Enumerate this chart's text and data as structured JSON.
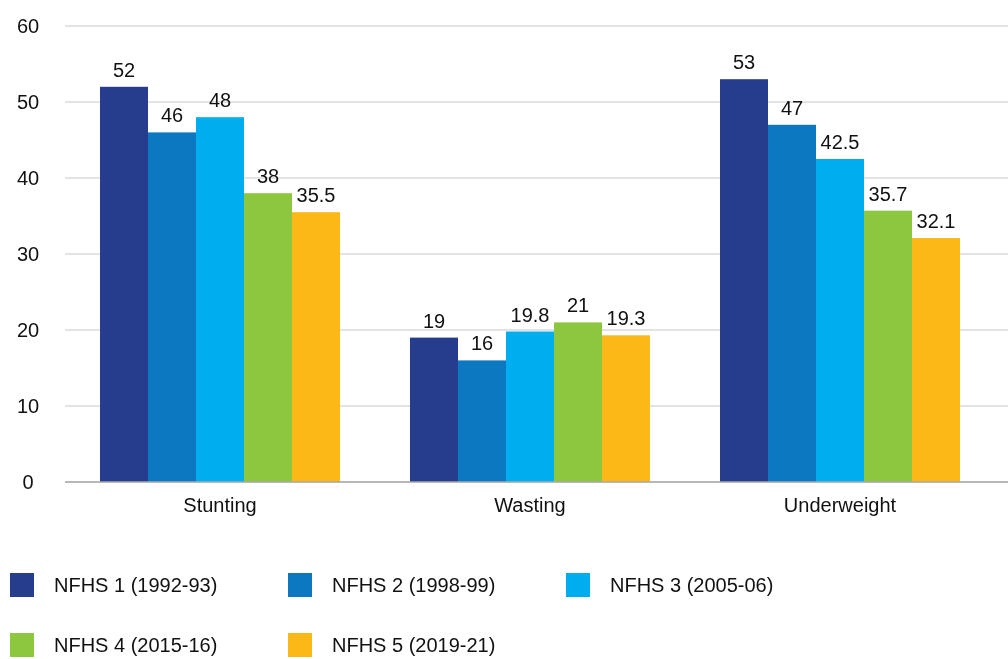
{
  "chart_data": {
    "type": "bar",
    "categories": [
      "Stunting",
      "Wasting",
      "Underweight"
    ],
    "series": [
      {
        "name": "NFHS 1 (1992-93)",
        "color": "#253d8c",
        "values": [
          52,
          19,
          53
        ]
      },
      {
        "name": "NFHS 2 (1998-99)",
        "color": "#0b78c1",
        "values": [
          46,
          16,
          47
        ]
      },
      {
        "name": "NFHS 3 (2005-06)",
        "color": "#00aeef",
        "values": [
          48,
          19.8,
          42.5
        ]
      },
      {
        "name": "NFHS 4 (2015-16)",
        "color": "#8dc63f",
        "values": [
          38,
          21,
          35.7
        ]
      },
      {
        "name": "NFHS 5 (2019-21)",
        "color": "#fbb817",
        "values": [
          35.5,
          19.3,
          32.1
        ]
      }
    ],
    "ylim": [
      0,
      60
    ],
    "yticks": [
      0,
      10,
      20,
      30,
      40,
      50,
      60
    ],
    "grid": "y",
    "legend": "bottom",
    "data_labels": true
  }
}
